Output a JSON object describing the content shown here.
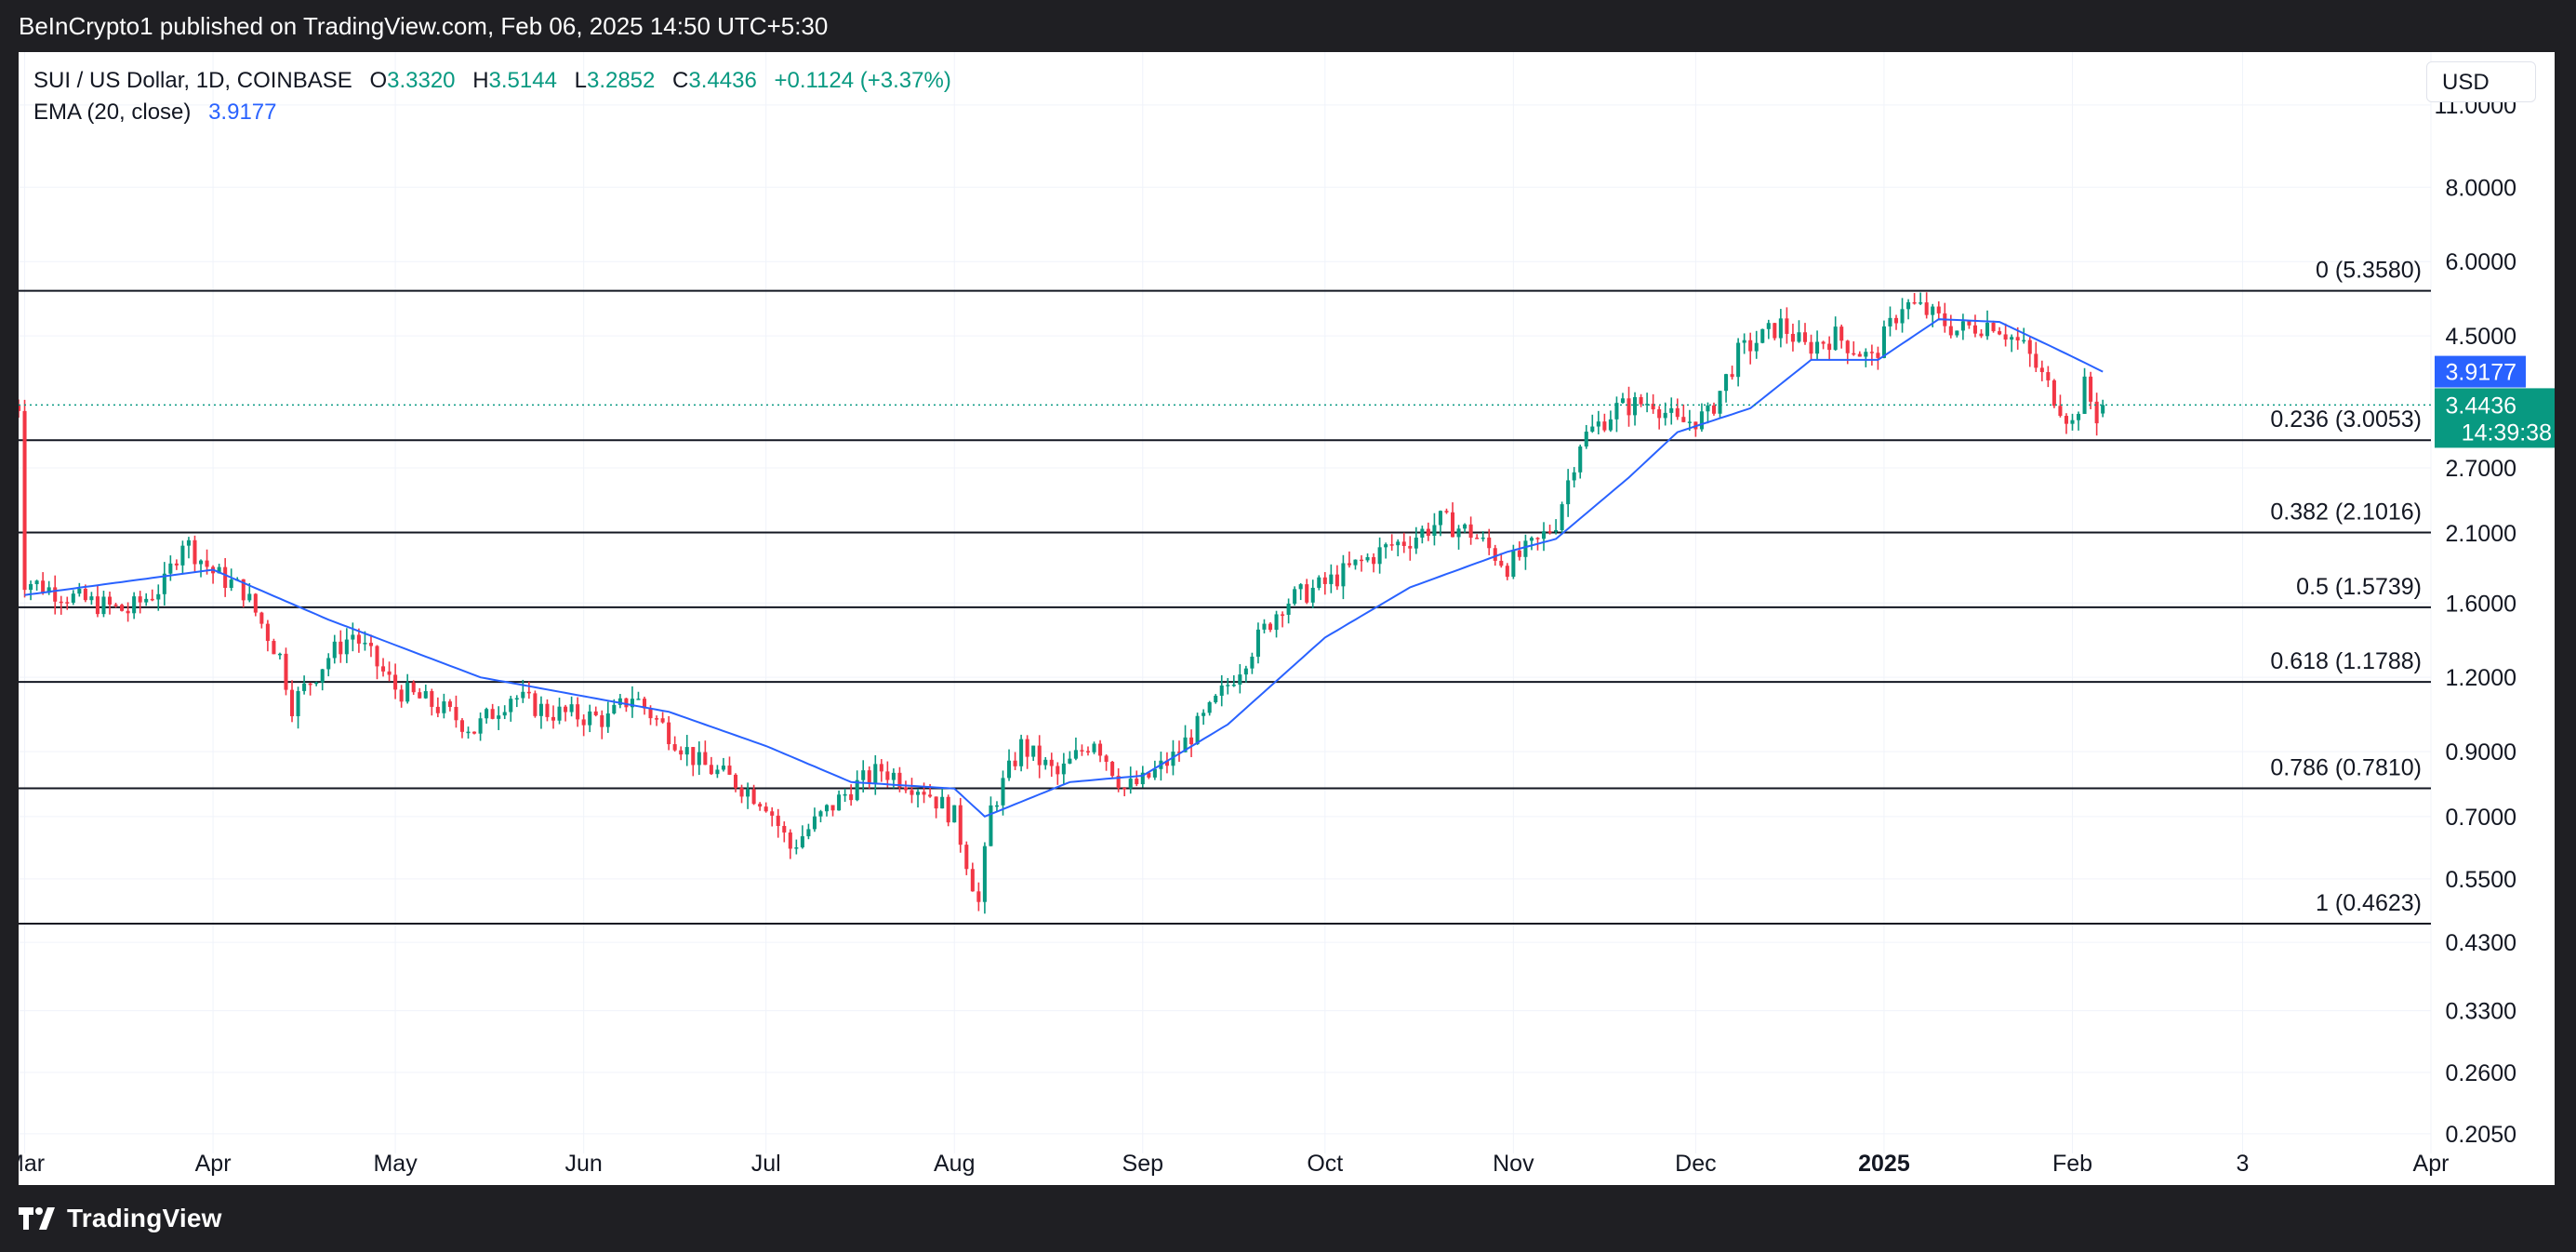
{
  "header": {
    "publisher": "BeInCrypto1 published on TradingView.com, Feb 06, 2025 14:50 UTC+5:30"
  },
  "footer": {
    "brand": "TradingView"
  },
  "legend": {
    "symbol": "SUI / US Dollar, 1D, COINBASE",
    "o_label": "O",
    "o_value": "3.3320",
    "h_label": "H",
    "h_value": "3.5144",
    "l_label": "L",
    "l_value": "3.2852",
    "c_label": "C",
    "c_value": "3.4436",
    "change": "+0.1124 (+3.37%)",
    "ema_label": "EMA (20, close)",
    "ema_value": "3.9177"
  },
  "currency": "USD",
  "price_badges": {
    "ema": "3.9177",
    "last": "3.4436",
    "countdown": "14:39:38"
  },
  "colors": {
    "up": "#089981",
    "down": "#f23645",
    "ema": "#2962ff",
    "fib": "#131722",
    "last_line": "#089981"
  },
  "chart_data": {
    "type": "candlestick",
    "y_scale": "log",
    "y_ticks": [
      "11.0000",
      "8.0000",
      "6.0000",
      "4.5000",
      "2.7000",
      "2.1000",
      "1.6000",
      "1.2000",
      "0.9000",
      "0.7000",
      "0.5500",
      "0.4300",
      "0.3300",
      "0.2600",
      "0.2050"
    ],
    "x_ticks": [
      {
        "label": "Mar",
        "date": "2024-03-01"
      },
      {
        "label": "Apr",
        "date": "2024-04-01"
      },
      {
        "label": "May",
        "date": "2024-05-01"
      },
      {
        "label": "Jun",
        "date": "2024-06-01"
      },
      {
        "label": "Jul",
        "date": "2024-07-01"
      },
      {
        "label": "Aug",
        "date": "2024-08-01"
      },
      {
        "label": "Sep",
        "date": "2024-09-01"
      },
      {
        "label": "Oct",
        "date": "2024-10-01"
      },
      {
        "label": "Nov",
        "date": "2024-11-01"
      },
      {
        "label": "Dec",
        "date": "2024-12-01"
      },
      {
        "label": "2025",
        "date": "2025-01-01"
      },
      {
        "label": "Feb",
        "date": "2025-02-01"
      },
      {
        "label": "3",
        "date": "2025-03-01"
      },
      {
        "label": "Apr",
        "date": "2025-04-01"
      }
    ],
    "x_range": [
      "2024-02-29",
      "2025-04-01"
    ],
    "y_range": [
      0.19,
      13.5
    ],
    "fib_levels": [
      {
        "label": "0 (5.3580)",
        "value": 5.358
      },
      {
        "label": "0.236 (3.0053)",
        "value": 3.0053
      },
      {
        "label": "0.382 (2.1016)",
        "value": 2.1016
      },
      {
        "label": "0.5 (1.5739)",
        "value": 1.5739
      },
      {
        "label": "0.618 (1.1788)",
        "value": 1.1788
      },
      {
        "label": "0.786 (0.7810)",
        "value": 0.781
      },
      {
        "label": "1 (0.4623)",
        "value": 0.4623
      }
    ],
    "close_anchors": [
      [
        "2024-03-01",
        1.75
      ],
      [
        "2024-03-10",
        1.62
      ],
      [
        "2024-03-18",
        1.55
      ],
      [
        "2024-03-24",
        1.72
      ],
      [
        "2024-03-27",
        2.05
      ],
      [
        "2024-04-01",
        1.8
      ],
      [
        "2024-04-06",
        1.68
      ],
      [
        "2024-04-12",
        1.3
      ],
      [
        "2024-04-14",
        1.08
      ],
      [
        "2024-04-20",
        1.3
      ],
      [
        "2024-04-24",
        1.42
      ],
      [
        "2024-05-01",
        1.15
      ],
      [
        "2024-05-08",
        1.07
      ],
      [
        "2024-05-14",
        0.98
      ],
      [
        "2024-05-20",
        1.12
      ],
      [
        "2024-05-26",
        1.05
      ],
      [
        "2024-06-05",
        1.02
      ],
      [
        "2024-06-09",
        1.12
      ],
      [
        "2024-06-15",
        0.97
      ],
      [
        "2024-06-20",
        0.86
      ],
      [
        "2024-06-26",
        0.8
      ],
      [
        "2024-07-01",
        0.74
      ],
      [
        "2024-07-05",
        0.62
      ],
      [
        "2024-07-10",
        0.7
      ],
      [
        "2024-07-15",
        0.78
      ],
      [
        "2024-07-20",
        0.84
      ],
      [
        "2024-07-27",
        0.78
      ],
      [
        "2024-08-01",
        0.7
      ],
      [
        "2024-08-05",
        0.5
      ],
      [
        "2024-08-07",
        0.72
      ],
      [
        "2024-08-12",
        0.92
      ],
      [
        "2024-08-18",
        0.82
      ],
      [
        "2024-08-24",
        0.95
      ],
      [
        "2024-08-29",
        0.78
      ],
      [
        "2024-09-01",
        0.8
      ],
      [
        "2024-09-06",
        0.88
      ],
      [
        "2024-09-12",
        1.05
      ],
      [
        "2024-09-18",
        1.3
      ],
      [
        "2024-09-24",
        1.6
      ],
      [
        "2024-10-01",
        1.72
      ],
      [
        "2024-10-06",
        1.85
      ],
      [
        "2024-10-12",
        2.0
      ],
      [
        "2024-10-15",
        2.05
      ],
      [
        "2024-10-20",
        2.2
      ],
      [
        "2024-10-25",
        2.1
      ],
      [
        "2024-10-31",
        1.85
      ],
      [
        "2024-11-05",
        2.02
      ],
      [
        "2024-11-08",
        2.2
      ],
      [
        "2024-11-12",
        3.0
      ],
      [
        "2024-11-18",
        3.4
      ],
      [
        "2024-11-24",
        3.5
      ],
      [
        "2024-11-28",
        3.2
      ],
      [
        "2024-12-03",
        3.3
      ],
      [
        "2024-12-08",
        4.2
      ],
      [
        "2024-12-15",
        4.7
      ],
      [
        "2024-12-19",
        4.3
      ],
      [
        "2024-12-24",
        4.5
      ],
      [
        "2024-12-30",
        4.1
      ],
      [
        "2025-01-04",
        5.1
      ],
      [
        "2025-01-07",
        5.0
      ],
      [
        "2025-01-13",
        4.6
      ],
      [
        "2025-01-19",
        4.75
      ],
      [
        "2025-01-24",
        4.3
      ],
      [
        "2025-01-28",
        3.7
      ],
      [
        "2025-02-01",
        3.2
      ],
      [
        "2025-02-03",
        3.7
      ],
      [
        "2025-02-05",
        3.3
      ],
      [
        "2025-02-06",
        3.4436
      ]
    ],
    "ema_anchors": [
      [
        "2024-03-01",
        1.65
      ],
      [
        "2024-04-01",
        1.82
      ],
      [
        "2024-04-20",
        1.5
      ],
      [
        "2024-05-15",
        1.2
      ],
      [
        "2024-06-15",
        1.05
      ],
      [
        "2024-07-01",
        0.92
      ],
      [
        "2024-07-15",
        0.8
      ],
      [
        "2024-08-01",
        0.78
      ],
      [
        "2024-08-06",
        0.7
      ],
      [
        "2024-08-20",
        0.8
      ],
      [
        "2024-09-01",
        0.82
      ],
      [
        "2024-09-15",
        1.0
      ],
      [
        "2024-10-01",
        1.4
      ],
      [
        "2024-10-15",
        1.7
      ],
      [
        "2024-10-31",
        1.95
      ],
      [
        "2024-11-08",
        2.05
      ],
      [
        "2024-11-20",
        2.6
      ],
      [
        "2024-11-28",
        3.1
      ],
      [
        "2024-12-10",
        3.4
      ],
      [
        "2024-12-20",
        4.1
      ],
      [
        "2024-12-31",
        4.1
      ],
      [
        "2025-01-10",
        4.8
      ],
      [
        "2025-01-20",
        4.75
      ],
      [
        "2025-01-31",
        4.2
      ],
      [
        "2025-02-06",
        3.9177
      ]
    ],
    "last": {
      "date": "2025-02-06",
      "close": 3.4436,
      "ema": 3.9177
    }
  }
}
